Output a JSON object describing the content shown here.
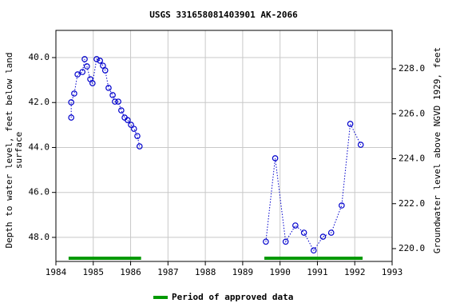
{
  "chart_data": {
    "type": "line",
    "title": "USGS 331658081403901 AK-2066",
    "ylabel": [
      "Depth to water level, feet below land",
      "surface"
    ],
    "y2label": "Groundwater level above NGVD 1929, feet",
    "xlim": [
      1984,
      1993
    ],
    "xticks": [
      1984,
      1985,
      1986,
      1987,
      1988,
      1989,
      1990,
      1991,
      1992,
      1993
    ],
    "ylim": [
      38.79,
      49.07
    ],
    "yticks": [
      {
        "value": 40,
        "label": "40.0"
      },
      {
        "value": 42,
        "label": "42.0"
      },
      {
        "value": 44,
        "label": "44.0"
      },
      {
        "value": 46,
        "label": "46.0"
      },
      {
        "value": 48,
        "label": "48.0"
      }
    ],
    "y2lim": [
      229.71,
      219.43
    ],
    "y2ticks": [
      {
        "value": 220,
        "label": "220.0"
      },
      {
        "value": 222,
        "label": "222.0"
      },
      {
        "value": 224,
        "label": "224.0"
      },
      {
        "value": 226,
        "label": "226.0"
      },
      {
        "value": 228,
        "label": "228.0"
      }
    ],
    "grid": true,
    "series": [
      {
        "color": "#0000cc",
        "x": [
          1984.41,
          1984.41,
          1984.49,
          1984.58,
          1984.71,
          1984.77,
          1984.83,
          1984.92,
          1984.98,
          1985.09,
          1985.18,
          1985.26,
          1985.32,
          1985.41,
          1985.52,
          1985.58,
          1985.67,
          1985.75,
          1985.84,
          1985.92,
          1986.01,
          1986.09,
          1986.18,
          1986.24,
          null,
          1989.62,
          1989.87,
          1990.15,
          1990.41,
          1990.64,
          1990.9,
          1991.15,
          1991.37,
          1991.65,
          1991.88,
          1992.16
        ],
        "values": [
          42.67,
          41.99,
          41.6,
          40.75,
          40.64,
          40.07,
          40.39,
          40.96,
          41.14,
          40.07,
          40.14,
          40.36,
          40.57,
          41.35,
          41.67,
          41.96,
          41.96,
          42.35,
          42.67,
          42.78,
          42.99,
          43.17,
          43.49,
          43.95,
          null,
          48.19,
          44.48,
          48.19,
          47.47,
          47.79,
          48.58,
          47.97,
          47.79,
          46.58,
          42.95,
          43.88
        ]
      }
    ],
    "approved": {
      "name": "Period of approved data",
      "color": "#009900",
      "periods": [
        {
          "start": 1984.34,
          "end": 1986.28
        },
        {
          "start": 1989.58,
          "end": 1992.21
        }
      ]
    }
  }
}
